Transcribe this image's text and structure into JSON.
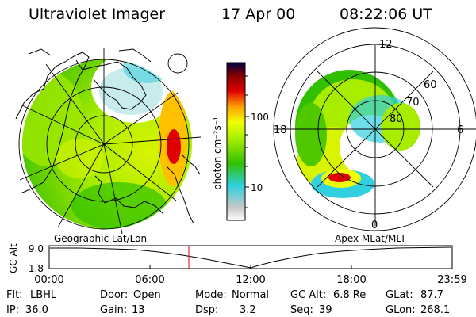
{
  "header": {
    "title": "Ultraviolet Imager",
    "date": "17 Apr 00",
    "time": "08:22:06 UT"
  },
  "colorbar": {
    "label": "photon cm⁻²s⁻¹",
    "ticks": [
      "100",
      "10"
    ]
  },
  "left_map": {
    "caption": "Geographic Lat/Lon"
  },
  "right_map": {
    "caption": "Apex MLat/MLT",
    "mlt_labels": [
      "12",
      "18",
      "6",
      "0"
    ],
    "lat_labels": [
      "60",
      "70",
      "80"
    ]
  },
  "timeline": {
    "ylabel": "GC Alt",
    "yticks": [
      "9.0",
      "1.8"
    ],
    "xticks": [
      "00:00",
      "06:00",
      "12:00",
      "18:00",
      "23:59"
    ],
    "cursor_time": "08:22"
  },
  "info": {
    "row1": [
      {
        "label": "Flt:",
        "value": "LBHL"
      },
      {
        "label": "Door:",
        "value": "Open"
      },
      {
        "label": "Mode:",
        "value": "Normal"
      },
      {
        "label": "GC Alt:",
        "value": "6.8 Re"
      },
      {
        "label": "GLat:",
        "value": "87.7"
      }
    ],
    "row2": [
      {
        "label": "IP:",
        "value": "36.0"
      },
      {
        "label": "Gain:",
        "value": "13"
      },
      {
        "label": "Dsp:",
        "value": "3.2"
      },
      {
        "label": "Seq:",
        "value": "39"
      },
      {
        "label": "GLon:",
        "value": "268.1"
      }
    ]
  },
  "colors": {
    "cursor": "#e00000",
    "scale": [
      "#ffffff",
      "#c8c8c8",
      "#30d0e0",
      "#30c000",
      "#f0ff00",
      "#ffa000",
      "#e00000",
      "#800000",
      "#000040"
    ]
  }
}
